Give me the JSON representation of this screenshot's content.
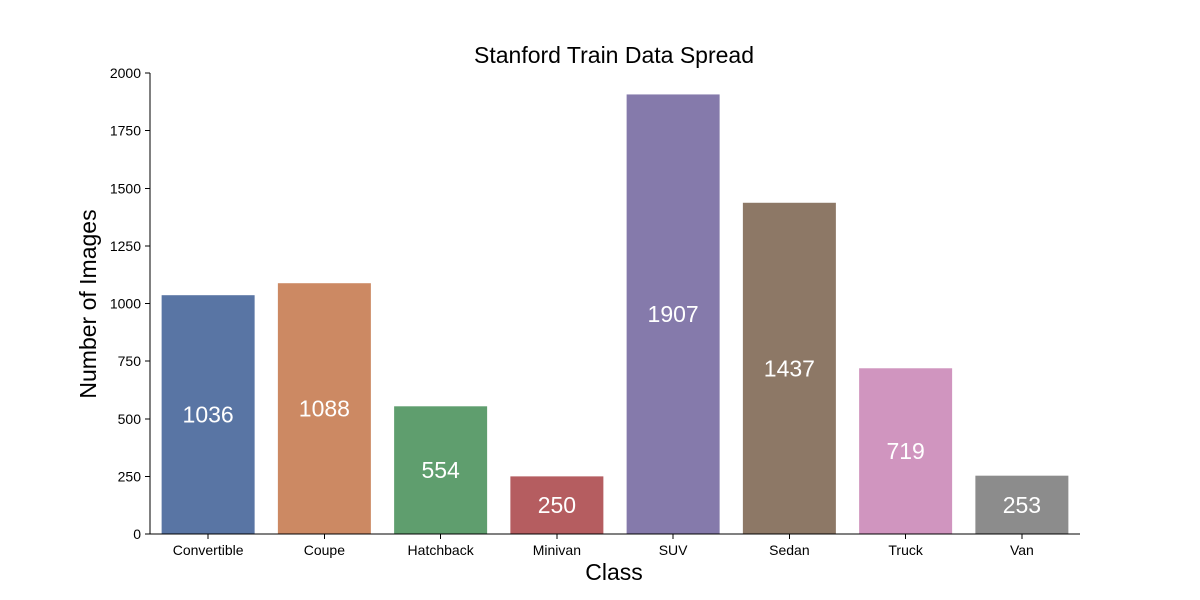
{
  "chart_data": {
    "type": "bar",
    "title": "Stanford Train Data Spread",
    "xlabel": "Class",
    "ylabel": "Number of Images",
    "categories": [
      "Convertible",
      "Coupe",
      "Hatchback",
      "Minivan",
      "SUV",
      "Sedan",
      "Truck",
      "Van"
    ],
    "values": [
      1036,
      1088,
      554,
      250,
      1907,
      1437,
      719,
      253
    ],
    "data_labels": [
      "1036",
      "1088",
      "554",
      "250",
      "1907",
      "1437",
      "719",
      "253"
    ],
    "colors": [
      "#5975a4",
      "#cc8963",
      "#5f9e6e",
      "#b55d60",
      "#857aab",
      "#8d7866",
      "#d095bf",
      "#8c8c8c"
    ],
    "ylim": [
      0,
      2000
    ],
    "yticks": [
      0,
      250,
      500,
      750,
      1000,
      1250,
      1500,
      1750,
      2000
    ],
    "ytick_labels": [
      "0",
      "250",
      "500",
      "750",
      "1000",
      "1250",
      "1500",
      "1750",
      "2000"
    ],
    "grid": false,
    "legend": "none"
  }
}
